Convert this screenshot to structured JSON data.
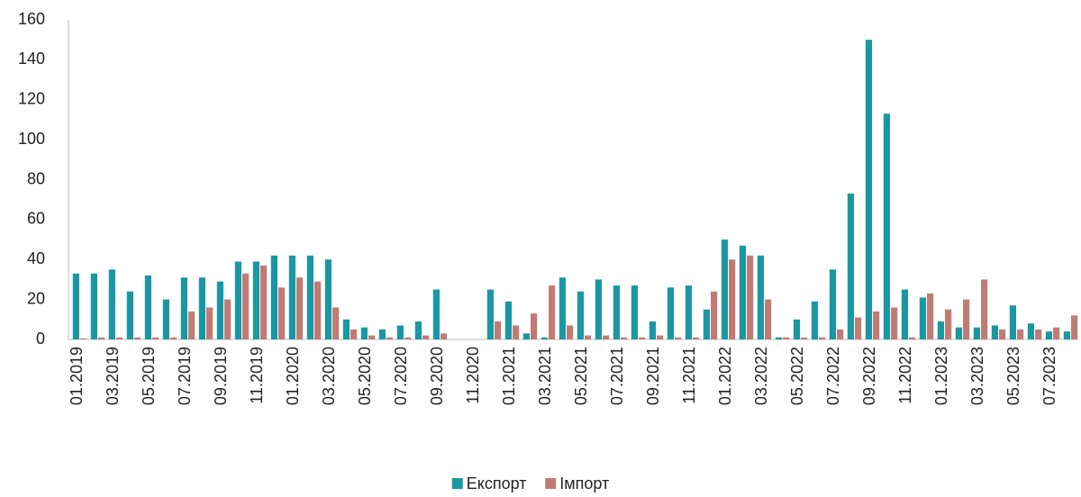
{
  "chart_data": {
    "type": "bar",
    "categories": [
      "01.2019",
      null,
      "03.2019",
      null,
      "05.2019",
      null,
      "07.2019",
      null,
      "09.2019",
      null,
      "11.2019",
      null,
      "01.2020",
      null,
      "03.2020",
      null,
      "05.2020",
      null,
      "07.2020",
      null,
      "09.2020",
      null,
      "11.2020",
      null,
      "01.2021",
      null,
      "03.2021",
      null,
      "05.2021",
      null,
      "07.2021",
      null,
      "09.2021",
      null,
      "11.2021",
      null,
      "01.2022",
      null,
      "03.2022",
      null,
      "05.2022",
      null,
      "07.2022",
      null,
      "09.2022",
      null,
      "11.2022",
      null,
      "01.2023",
      null,
      "03.2023",
      null,
      "05.2023",
      null,
      "07.2023",
      null
    ],
    "series": [
      {
        "name": "Експорт",
        "color": "#1b97a3",
        "values": [
          33,
          33,
          35,
          24,
          32,
          20,
          31,
          31,
          29,
          39,
          39,
          42,
          42,
          42,
          40,
          10,
          6,
          5,
          7,
          9,
          25,
          0,
          0,
          25,
          19,
          3,
          1,
          31,
          24,
          30,
          27,
          27,
          9,
          26,
          27,
          15,
          50,
          47,
          42,
          1,
          10,
          19,
          35,
          73,
          150,
          113,
          25,
          21,
          9,
          6,
          6,
          7,
          17,
          8,
          4,
          4
        ]
      },
      {
        "name": "Імпорт",
        "color": "#c27b73",
        "values": [
          0.5,
          1,
          1,
          1,
          1,
          1,
          14,
          16,
          20,
          33,
          37,
          26,
          31,
          29,
          16,
          5,
          2,
          1,
          1,
          2,
          3,
          0,
          0,
          9,
          7,
          13,
          27,
          7,
          2,
          2,
          1,
          1,
          2,
          1,
          1,
          24,
          40,
          42,
          20,
          1,
          1,
          1,
          5,
          11,
          14,
          16,
          1,
          23,
          15,
          20,
          30,
          5,
          5,
          5,
          6,
          12
        ]
      }
    ],
    "ylim": [
      0,
      160
    ],
    "yticks": [
      0,
      20,
      40,
      60,
      80,
      100,
      120,
      140,
      160
    ],
    "grid": false,
    "legend": "bottom"
  }
}
